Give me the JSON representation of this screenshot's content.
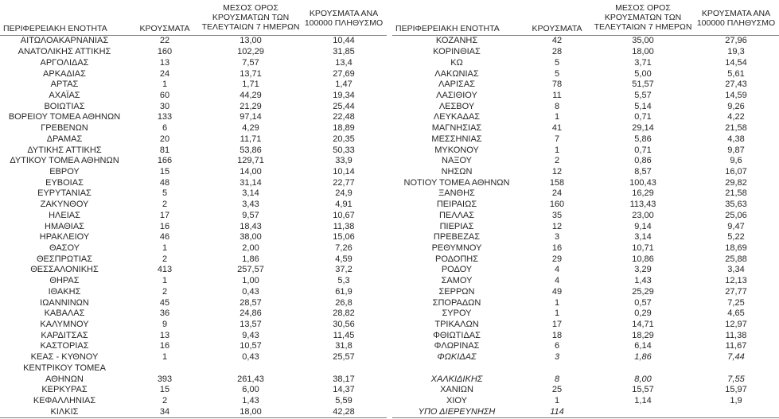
{
  "colors": {
    "background": "#ffffff",
    "text": "#262626",
    "rule": "#7f7f7f"
  },
  "headers": {
    "region": "ΠΕΡΙΦΕΡΕΙΑΚΗ ΕΝΟΤΗΤΑ",
    "cases": "ΚΡΟΥΣΜΑΤΑ",
    "avg7_line1": "ΜΕΣΟΣ ΟΡΟΣ",
    "avg7_line2": "ΚΡΟΥΣΜΑΤΩΝ ΤΩΝ",
    "avg7_line3": "ΤΕΛΕΥΤΑΙΩΝ 7 ΗΜΕΡΩΝ",
    "per100k_line1": "ΚΡΟΥΣΜΑΤΑ ΑΝΑ",
    "per100k_line2": "100000 ΠΛΗΘΥΣΜΟ"
  },
  "left_table": {
    "rows": [
      {
        "name": "ΑΙΤΩΛΟΑΚΑΡΝΑΝΙΑΣ",
        "cases": "22",
        "avg7": "13,00",
        "per100k": "10,44"
      },
      {
        "name": "ΑΝΑΤΟΛΙΚΗΣ ΑΤΤΙΚΗΣ",
        "cases": "160",
        "avg7": "102,29",
        "per100k": "31,85"
      },
      {
        "name": "ΑΡΓΟΛΙΔΑΣ",
        "cases": "13",
        "avg7": "7,57",
        "per100k": "13,4"
      },
      {
        "name": "ΑΡΚΑΔΙΑΣ",
        "cases": "24",
        "avg7": "13,71",
        "per100k": "27,69"
      },
      {
        "name": "ΑΡΤΑΣ",
        "cases": "1",
        "avg7": "1,71",
        "per100k": "1,47"
      },
      {
        "name": "ΑΧΑΪΑΣ",
        "cases": "60",
        "avg7": "44,29",
        "per100k": "19,34"
      },
      {
        "name": "ΒΟΙΩΤΙΑΣ",
        "cases": "30",
        "avg7": "21,29",
        "per100k": "25,44"
      },
      {
        "name": "ΒΟΡΕΙΟΥ ΤΟΜΕΑ ΑΘΗΝΩΝ",
        "cases": "133",
        "avg7": "97,14",
        "per100k": "22,48"
      },
      {
        "name": "ΓΡΕΒΕΝΩΝ",
        "cases": "6",
        "avg7": "4,29",
        "per100k": "18,89"
      },
      {
        "name": "ΔΡΑΜΑΣ",
        "cases": "20",
        "avg7": "11,71",
        "per100k": "20,35"
      },
      {
        "name": "ΔΥΤΙΚΗΣ ΑΤΤΙΚΗΣ",
        "cases": "81",
        "avg7": "53,86",
        "per100k": "50,33"
      },
      {
        "name": "ΔΥΤΙΚΟΥ ΤΟΜΕΑ ΑΘΗΝΩΝ",
        "cases": "166",
        "avg7": "129,71",
        "per100k": "33,9"
      },
      {
        "name": "ΕΒΡΟΥ",
        "cases": "15",
        "avg7": "14,00",
        "per100k": "10,14"
      },
      {
        "name": "ΕΥΒΟΙΑΣ",
        "cases": "48",
        "avg7": "31,14",
        "per100k": "22,77"
      },
      {
        "name": "ΕΥΡΥΤΑΝΙΑΣ",
        "cases": "5",
        "avg7": "3,14",
        "per100k": "24,9"
      },
      {
        "name": "ΖΑΚΥΝΘΟΥ",
        "cases": "2",
        "avg7": "3,43",
        "per100k": "4,91"
      },
      {
        "name": "ΗΛΕΙΑΣ",
        "cases": "17",
        "avg7": "9,57",
        "per100k": "10,67"
      },
      {
        "name": "ΗΜΑΘΙΑΣ",
        "cases": "16",
        "avg7": "18,43",
        "per100k": "11,38"
      },
      {
        "name": "ΗΡΑΚΛΕΙΟΥ",
        "cases": "46",
        "avg7": "38,00",
        "per100k": "15,06"
      },
      {
        "name": "ΘΑΣΟΥ",
        "cases": "1",
        "avg7": "2,00",
        "per100k": "7,26"
      },
      {
        "name": "ΘΕΣΠΡΩΤΙΑΣ",
        "cases": "2",
        "avg7": "1,86",
        "per100k": "4,59"
      },
      {
        "name": "ΘΕΣΣΑΛΟΝΙΚΗΣ",
        "cases": "413",
        "avg7": "257,57",
        "per100k": "37,2"
      },
      {
        "name": "ΘΗΡΑΣ",
        "cases": "1",
        "avg7": "1,00",
        "per100k": "5,3"
      },
      {
        "name": "ΙΘΑΚΗΣ",
        "cases": "2",
        "avg7": "0,43",
        "per100k": "61,9"
      },
      {
        "name": "ΙΩΑΝΝΙΝΩΝ",
        "cases": "45",
        "avg7": "28,57",
        "per100k": "26,8"
      },
      {
        "name": "ΚΑΒΑΛΑΣ",
        "cases": "36",
        "avg7": "24,86",
        "per100k": "28,82"
      },
      {
        "name": "ΚΑΛΥΜΝΟΥ",
        "cases": "9",
        "avg7": "13,57",
        "per100k": "30,56"
      },
      {
        "name": "ΚΑΡΔΙΤΣΑΣ",
        "cases": "13",
        "avg7": "9,43",
        "per100k": "11,45"
      },
      {
        "name": "ΚΑΣΤΟΡΙΑΣ",
        "cases": "16",
        "avg7": "10,57",
        "per100k": "31,8"
      },
      {
        "name": "ΚΕΑΣ - ΚΥΘΝΟΥ",
        "cases": "1",
        "avg7": "0,43",
        "per100k": "25,57"
      },
      {
        "name": "ΚΕΝΤΡΙΚΟΥ ΤΟΜΕΑ",
        "cases": "",
        "avg7": "",
        "per100k": ""
      },
      {
        "name": "ΑΘΗΝΩΝ",
        "cases": "393",
        "avg7": "261,43",
        "per100k": "38,17"
      },
      {
        "name": "ΚΕΡΚΥΡΑΣ",
        "cases": "15",
        "avg7": "6,00",
        "per100k": "14,37"
      },
      {
        "name": "ΚΕΦΑΛΛΗΝΙΑΣ",
        "cases": "2",
        "avg7": "1,43",
        "per100k": "5,59"
      },
      {
        "name": "ΚΙΛΚΙΣ",
        "cases": "34",
        "avg7": "18,00",
        "per100k": "42,28"
      }
    ]
  },
  "right_table": {
    "rows": [
      {
        "name": "ΚΟΖΑΝΗΣ",
        "cases": "42",
        "avg7": "35,00",
        "per100k": "27,96"
      },
      {
        "name": "ΚΟΡΙΝΘΙΑΣ",
        "cases": "28",
        "avg7": "18,00",
        "per100k": "19,3"
      },
      {
        "name": "ΚΩ",
        "cases": "5",
        "avg7": "3,71",
        "per100k": "14,54"
      },
      {
        "name": "ΛΑΚΩΝΙΑΣ",
        "cases": "5",
        "avg7": "5,00",
        "per100k": "5,61"
      },
      {
        "name": "ΛΑΡΙΣΑΣ",
        "cases": "78",
        "avg7": "51,57",
        "per100k": "27,43"
      },
      {
        "name": "ΛΑΣΙΘΙΟΥ",
        "cases": "11",
        "avg7": "5,57",
        "per100k": "14,59"
      },
      {
        "name": "ΛΕΣΒΟΥ",
        "cases": "8",
        "avg7": "5,14",
        "per100k": "9,26"
      },
      {
        "name": "ΛΕΥΚΑΔΑΣ",
        "cases": "1",
        "avg7": "0,71",
        "per100k": "4,22"
      },
      {
        "name": "ΜΑΓΝΗΣΙΑΣ",
        "cases": "41",
        "avg7": "29,14",
        "per100k": "21,58"
      },
      {
        "name": "ΜΕΣΣΗΝΙΑΣ",
        "cases": "7",
        "avg7": "5,86",
        "per100k": "4,38"
      },
      {
        "name": "ΜΥΚΟΝΟΥ",
        "cases": "1",
        "avg7": "0,71",
        "per100k": "9,87"
      },
      {
        "name": "ΝΑΞΟΥ",
        "cases": "2",
        "avg7": "0,86",
        "per100k": "9,6"
      },
      {
        "name": "ΝΗΣΩΝ",
        "cases": "12",
        "avg7": "8,57",
        "per100k": "16,07"
      },
      {
        "name": "ΝΟΤΙΟΥ ΤΟΜΕΑ ΑΘΗΝΩΝ",
        "cases": "158",
        "avg7": "100,43",
        "per100k": "29,82"
      },
      {
        "name": "ΞΑΝΘΗΣ",
        "cases": "24",
        "avg7": "16,29",
        "per100k": "21,58"
      },
      {
        "name": "ΠΕΙΡΑΙΩΣ",
        "cases": "160",
        "avg7": "113,43",
        "per100k": "35,63"
      },
      {
        "name": "ΠΕΛΛΑΣ",
        "cases": "35",
        "avg7": "23,00",
        "per100k": "25,06"
      },
      {
        "name": "ΠΙΕΡΙΑΣ",
        "cases": "12",
        "avg7": "9,14",
        "per100k": "9,47"
      },
      {
        "name": "ΠΡΕΒΕΖΑΣ",
        "cases": "3",
        "avg7": "3,14",
        "per100k": "5,22"
      },
      {
        "name": "ΡΕΘΥΜΝΟΥ",
        "cases": "16",
        "avg7": "10,71",
        "per100k": "18,69"
      },
      {
        "name": "ΡΟΔΟΠΗΣ",
        "cases": "29",
        "avg7": "10,86",
        "per100k": "25,88"
      },
      {
        "name": "ΡΟΔΟΥ",
        "cases": "4",
        "avg7": "3,29",
        "per100k": "3,34"
      },
      {
        "name": "ΣΑΜΟΥ",
        "cases": "4",
        "avg7": "1,43",
        "per100k": "12,13"
      },
      {
        "name": "ΣΕΡΡΩΝ",
        "cases": "49",
        "avg7": "25,29",
        "per100k": "27,77"
      },
      {
        "name": "ΣΠΟΡΑΔΩΝ",
        "cases": "1",
        "avg7": "0,57",
        "per100k": "7,25"
      },
      {
        "name": "ΣΥΡΟΥ",
        "cases": "1",
        "avg7": "0,29",
        "per100k": "4,65"
      },
      {
        "name": "ΤΡΙΚΑΛΩΝ",
        "cases": "17",
        "avg7": "14,71",
        "per100k": "12,97"
      },
      {
        "name": "ΦΘΙΩΤΙΔΑΣ",
        "cases": "18",
        "avg7": "18,29",
        "per100k": "11,38"
      },
      {
        "name": "ΦΛΩΡΙΝΑΣ",
        "cases": "6",
        "avg7": "6,14",
        "per100k": "11,67"
      },
      {
        "name": "ΦΩΚΙΔΑΣ",
        "cases": "3",
        "avg7": "1,86",
        "per100k": "7,44",
        "italic": true
      },
      {
        "name": "",
        "cases": "",
        "avg7": "",
        "per100k": ""
      },
      {
        "name": "ΧΑΛΚΙΔΙΚΗΣ",
        "cases": "8",
        "avg7": "8,00",
        "per100k": "7,55",
        "italic": true
      },
      {
        "name": "ΧΑΝΙΩΝ",
        "cases": "25",
        "avg7": "15,57",
        "per100k": "15,97"
      },
      {
        "name": "ΧΙΟΥ",
        "cases": "1",
        "avg7": "1,14",
        "per100k": "1,9"
      },
      {
        "name": "ΥΠΟ ΔΙΕΡΕΥΝΗΣΗ",
        "cases": "114",
        "avg7": "",
        "per100k": "",
        "italic": true
      }
    ]
  }
}
